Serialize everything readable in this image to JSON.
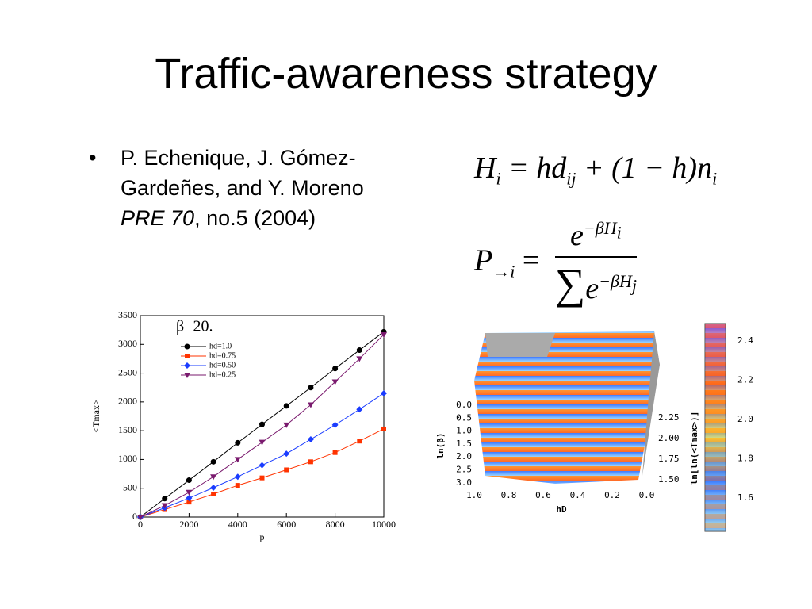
{
  "header": {
    "title": "Traffic-awareness strategy"
  },
  "bullet": {
    "authors": "P. Echenique, J. Gómez-Gardeñes, and Y. Moreno",
    "journal": "PRE 70",
    "details": ", no.5 (2004)"
  },
  "formula_1": {
    "parts": [
      {
        "text": "H",
        "sub": "i"
      },
      {
        "text": " = hd",
        "sub": "ij"
      },
      {
        "text": " + (1 − h)n",
        "sub": "i"
      }
    ]
  },
  "formula_2": {
    "lhs": {
      "text": "P",
      "sub": "→i"
    },
    "equals": "=",
    "numerator": {
      "text": "e",
      "sup": "−βH",
      "supsub": "i"
    },
    "denominator": {
      "sigma": "∑",
      "text": "e",
      "sup": "−βH",
      "supsub": "j"
    }
  },
  "chart_data": {
    "type": "line",
    "annotation": "β=20.",
    "x_label": "p",
    "y_label": "<Tmax>",
    "x": [
      0,
      1000,
      2000,
      3000,
      4000,
      5000,
      6000,
      7000,
      8000,
      9000,
      10000
    ],
    "series": [
      {
        "name": "hd=1.0",
        "color": "#000000",
        "marker": "circle",
        "values": [
          0,
          320,
          640,
          960,
          1290,
          1610,
          1930,
          2250,
          2580,
          2900,
          3220
        ]
      },
      {
        "name": "hd=0.75",
        "color": "#ff3300",
        "marker": "square",
        "values": [
          0,
          130,
          260,
          400,
          550,
          680,
          820,
          960,
          1120,
          1320,
          1530
        ]
      },
      {
        "name": "hd=0.50",
        "color": "#1a3cff",
        "marker": "diamond",
        "values": [
          0,
          160,
          330,
          510,
          700,
          900,
          1100,
          1350,
          1600,
          1870,
          2150
        ]
      },
      {
        "name": "hd=0.25",
        "color": "#7a1a6e",
        "marker": "triangle",
        "values": [
          0,
          200,
          430,
          700,
          1000,
          1300,
          1600,
          1950,
          2350,
          2750,
          3170
        ]
      }
    ],
    "xlim": [
      0,
      10000
    ],
    "xticks": [
      0,
      2000,
      4000,
      6000,
      8000,
      10000
    ],
    "ylim": [
      0,
      3500
    ],
    "yticks": [
      0,
      500,
      1000,
      1500,
      2000,
      2500,
      3000,
      3500
    ],
    "legend": "upper left"
  },
  "surface_plot": {
    "y_label": "ln(β)",
    "y_ticks": [
      "0.0",
      "0.5",
      "1.0",
      "1.5",
      "2.0",
      "2.5",
      "3.0"
    ],
    "x_label": "hD",
    "x_ticks": [
      "1.0",
      "0.8",
      "0.6",
      "0.4",
      "0.2",
      "0.0"
    ],
    "z_ticks": [
      "2.25",
      "2.00",
      "1.75",
      "1.50"
    ],
    "colorbar_label": "ln[ln(<Tmax>)]",
    "colorbar_ticks": [
      "2.4",
      "2.2",
      "2.0",
      "1.8",
      "1.6"
    ]
  }
}
